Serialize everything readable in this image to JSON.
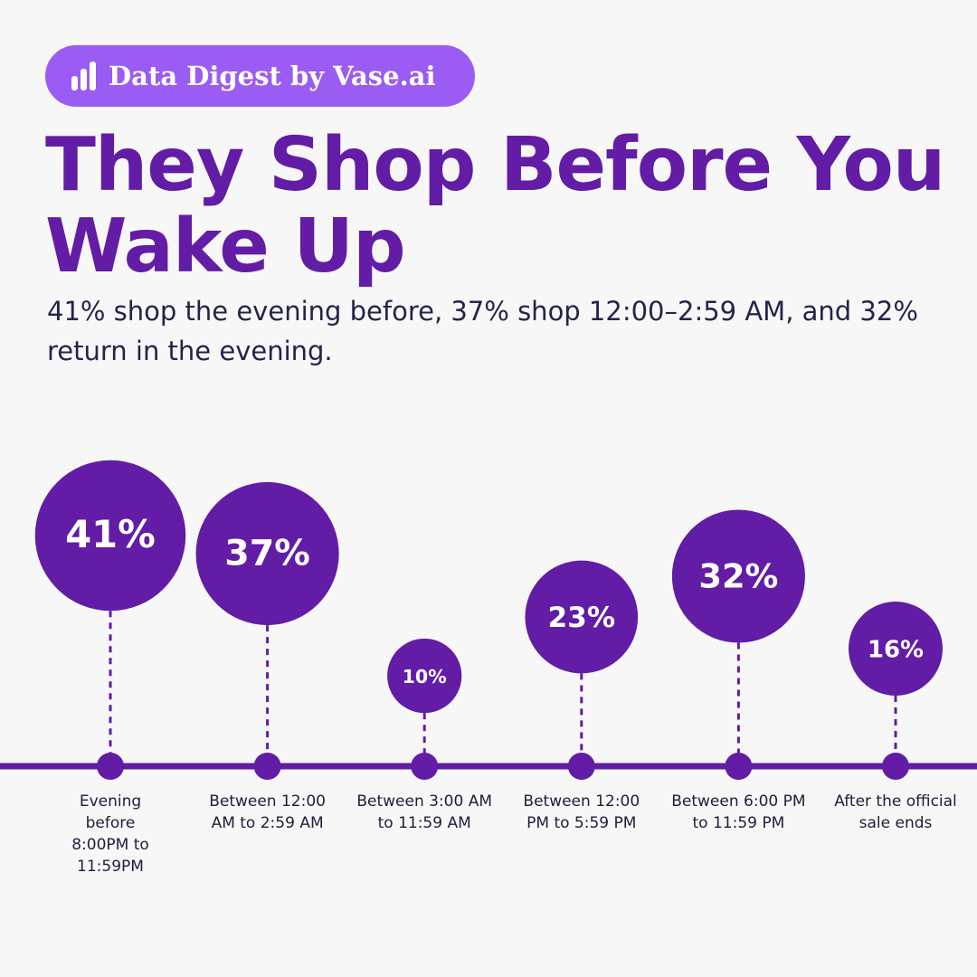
{
  "brand": "Data Digest by Vase.ai",
  "chart_data": {
    "type": "bubble",
    "title": "They Shop Before You Wake Up",
    "subtitle": "41% shop the evening before, 37% shop 12:00–2:59 AM, and 32% return in the evening.",
    "categories": [
      "Evening before 8:00PM to 11:59PM",
      "Between 12:00 AM to 2:59 AM",
      "Between 3:00 AM to 11:59 AM",
      "Between 12:00 PM to 5:59 PM",
      "Between 6:00 PM to 11:59 PM",
      "After the official sale ends"
    ],
    "values": [
      41,
      37,
      10,
      23,
      32,
      16
    ],
    "value_labels": [
      "41%",
      "37%",
      "10%",
      "23%",
      "32%",
      "16%"
    ],
    "color": "#621ca6"
  }
}
